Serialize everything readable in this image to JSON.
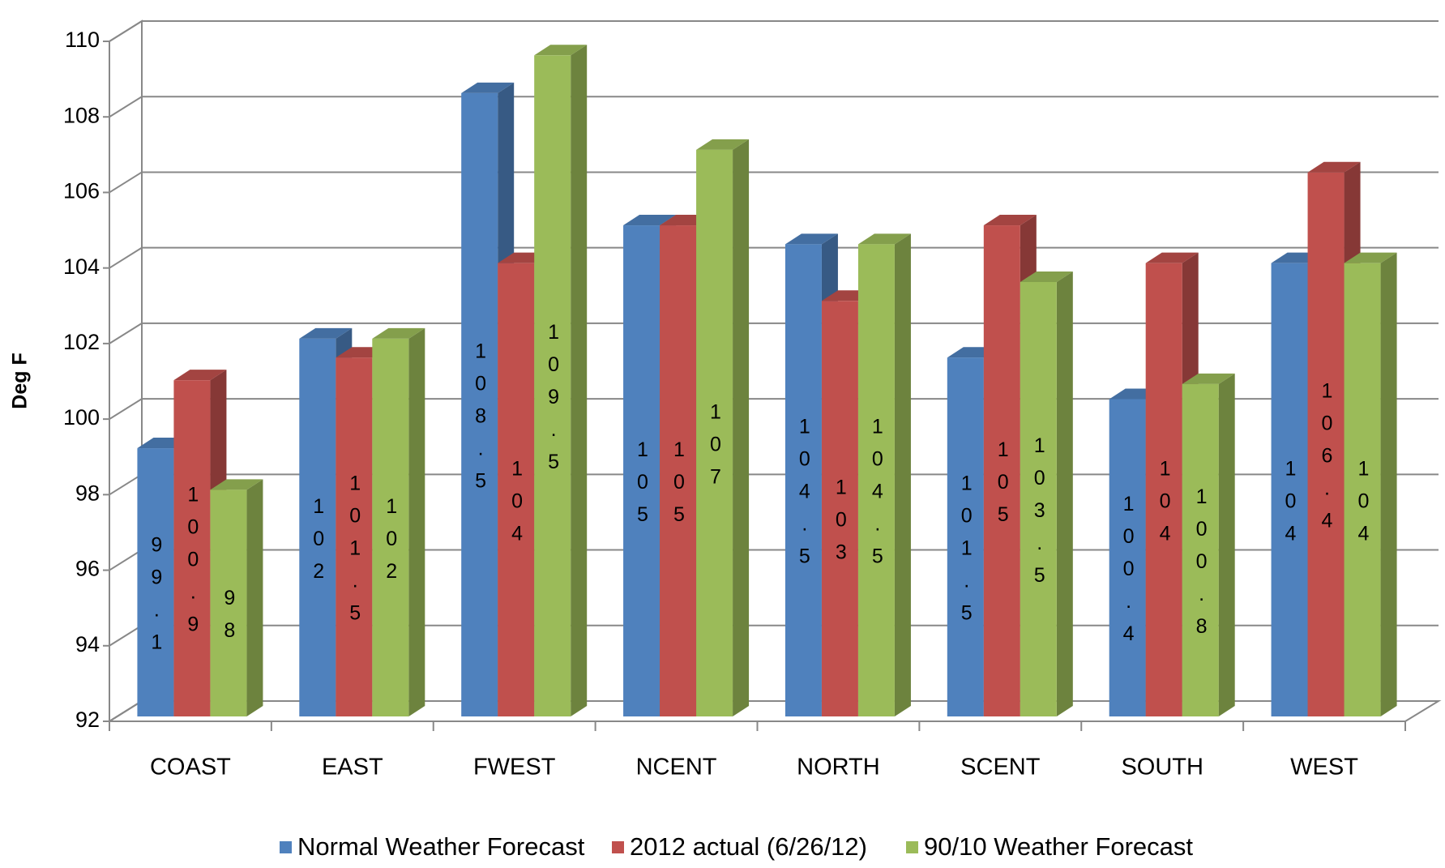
{
  "chart_data": {
    "type": "bar3d",
    "y_label": "Deg F",
    "categories": [
      "COAST",
      "EAST",
      "FWEST",
      "NCENT",
      "NORTH",
      "SCENT",
      "SOUTH",
      "WEST"
    ],
    "series": [
      {
        "name": "Normal Weather Forecast",
        "color": "#4f81bd",
        "values": [
          99.1,
          102,
          108.5,
          105,
          104.5,
          101.5,
          100.4,
          104
        ]
      },
      {
        "name": "2012 actual (6/26/12)",
        "color": "#c0504d",
        "values": [
          100.9,
          101.5,
          104,
          105,
          103,
          105,
          104,
          106.4
        ]
      },
      {
        "name": "90/10 Weather Forecast",
        "color": "#9bbb59",
        "values": [
          98,
          102,
          109.5,
          107,
          104.5,
          103.5,
          100.8,
          104
        ]
      }
    ],
    "ylim": [
      92,
      110
    ],
    "yticks": [
      92,
      94,
      96,
      98,
      100,
      102,
      104,
      106,
      108,
      110
    ],
    "grid": true,
    "legend": "bottom"
  }
}
